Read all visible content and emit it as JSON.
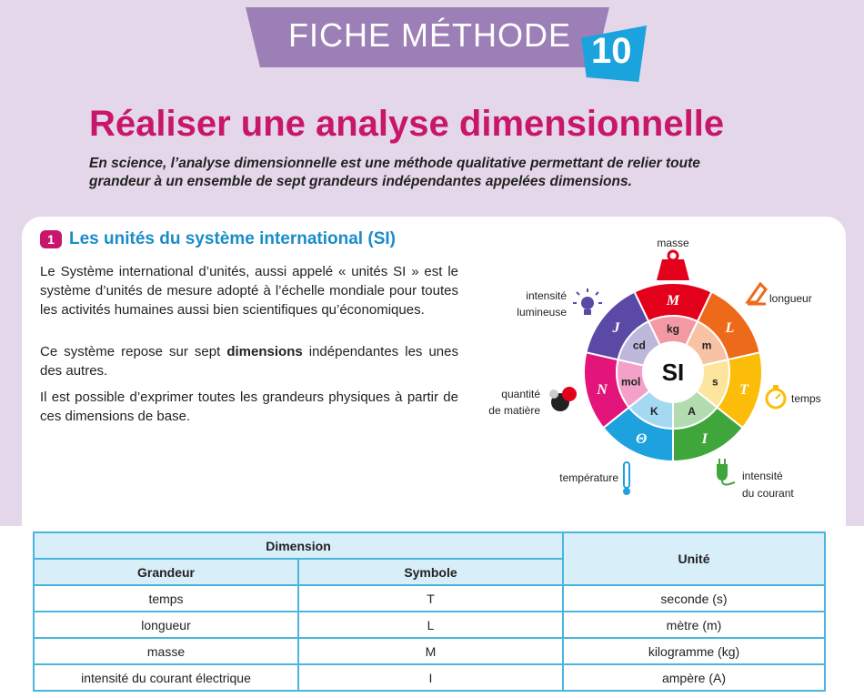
{
  "header": {
    "banner": "FICHE MÉTHODE",
    "number": "10",
    "title": "Réaliser une analyse dimensionnelle",
    "intro": "En science, l’analyse dimensionnelle est une méthode qualitative permettant de relier toute grandeur à un ensemble de sept grandeurs indépendantes appelées dimensions."
  },
  "section": {
    "number": "1",
    "title": "Les unités du système international (SI)",
    "p1": "Le Système international d’unités, aussi appelé « unités SI » est le système d’unités de mesure adopté à l’échelle mondiale pour toutes les activités humaines aussi bien scientifiques qu’économiques.",
    "p2_before": "Ce système repose sur sept ",
    "p2_bold": "dimensions",
    "p2_after": " indépendantes les unes des autres.",
    "p3": "Il est possible d’exprimer toutes les grandeurs physiques à partir de ces dimensions de base."
  },
  "wheel": {
    "center": "SI",
    "labels": {
      "masse": "masse",
      "longueur": "longueur",
      "temps": "temps",
      "intensite_courant_1": "intensité",
      "intensite_courant_2": "du courant",
      "temperature": "température",
      "quantite_1": "quantité",
      "quantite_2": "de matière",
      "intensite_lum_1": "intensité",
      "intensite_lum_2": "lumineuse"
    },
    "segments": [
      {
        "dim": "M",
        "unit": "kg",
        "color": "#e2001a"
      },
      {
        "dim": "L",
        "unit": "m",
        "color": "#ee6a1b"
      },
      {
        "dim": "T",
        "unit": "s",
        "color": "#fbbd09"
      },
      {
        "dim": "I",
        "unit": "A",
        "color": "#3ea63a"
      },
      {
        "dim": "Θ",
        "unit": "K",
        "color": "#1ea1df"
      },
      {
        "dim": "N",
        "unit": "mol",
        "color": "#e4157a"
      },
      {
        "dim": "J",
        "unit": "cd",
        "color": "#5a4aa6"
      }
    ]
  },
  "table": {
    "header_dimension": "Dimension",
    "header_grandeur": "Grandeur",
    "header_symbole": "Symbole",
    "header_unite": "Unité",
    "rows": [
      {
        "grandeur": "temps",
        "symbole": "T",
        "unite": "seconde (s)"
      },
      {
        "grandeur": "longueur",
        "symbole": "L",
        "unite": "mètre (m)"
      },
      {
        "grandeur": "masse",
        "symbole": "M",
        "unite": "kilogramme (kg)"
      },
      {
        "grandeur": "intensité du courant électrique",
        "symbole": "I",
        "unite": "ampère (A)"
      }
    ]
  }
}
